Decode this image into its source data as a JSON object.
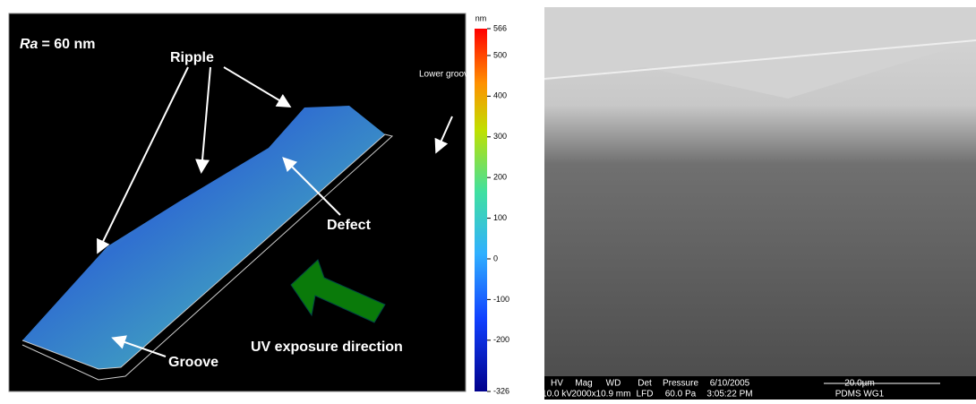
{
  "left_panel": {
    "roughness_symbol": "Ra",
    "roughness_value": "= 60 nm",
    "labels": {
      "ripple": "Ripple",
      "defect": "Defect",
      "groove": "Groove",
      "uv": "UV exposure direction",
      "lower": "Lower grooves"
    }
  },
  "colorbar": {
    "unit": "nm",
    "lim": [
      -326,
      566
    ],
    "ticks": [
      -326,
      -200,
      -100,
      0,
      100,
      200,
      300,
      400,
      500,
      566
    ]
  },
  "sem_panel": {
    "info_header": [
      "HV",
      "Mag",
      "WD",
      "Det",
      "Pressure",
      "6/10/2005",
      "20.0µm"
    ],
    "info_values": [
      "10.0 kV",
      "2000x",
      "10.9 mm",
      "LFD",
      "60.0 Pa",
      "3:05:22 PM",
      "PDMS WG1"
    ]
  }
}
